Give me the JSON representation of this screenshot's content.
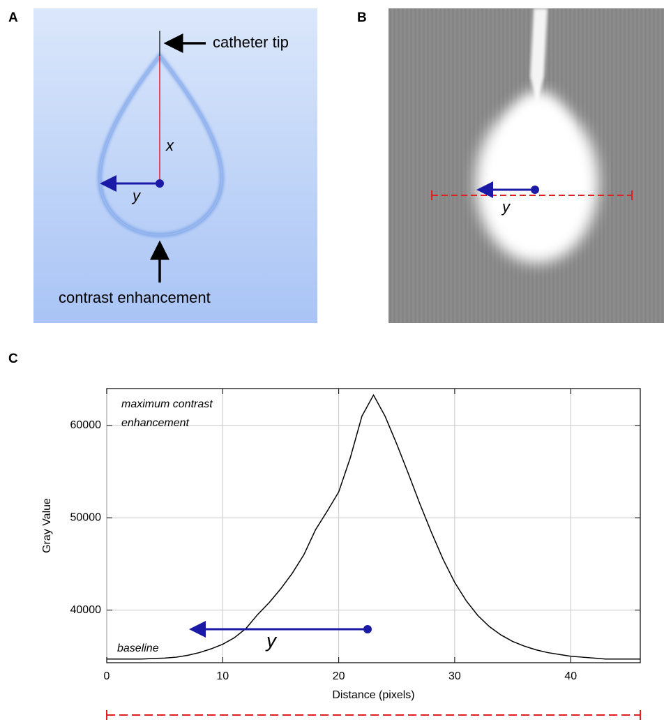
{
  "panels": {
    "a": {
      "label": "A",
      "catheter_tip": "catheter tip",
      "x_label": "x",
      "y_label": "y",
      "contrast": "contrast enhancement"
    },
    "b": {
      "label": "B",
      "y_label": "y"
    },
    "c": {
      "label": "C"
    }
  },
  "chart_data": {
    "type": "line",
    "x_label": "Distance (pixels)",
    "y_label": "Gray Value",
    "annotations": [
      "maximum contrast",
      "enhancement",
      "baseline",
      "y"
    ],
    "x": [
      0,
      1,
      2,
      3,
      4,
      5,
      6,
      7,
      8,
      9,
      10,
      11,
      12,
      13,
      14,
      15,
      16,
      17,
      18,
      19,
      20,
      21,
      22,
      23,
      24,
      25,
      26,
      27,
      28,
      29,
      30,
      31,
      32,
      33,
      34,
      35,
      36,
      37,
      38,
      39,
      40,
      41,
      42,
      43,
      44,
      45,
      46
    ],
    "values": [
      34700,
      34700,
      34700,
      34700,
      34750,
      34800,
      34900,
      35100,
      35400,
      35800,
      36300,
      37000,
      38000,
      39500,
      40800,
      42300,
      44000,
      46000,
      48700,
      50700,
      52800,
      56500,
      61000,
      63300,
      61000,
      58000,
      54800,
      51500,
      48400,
      45500,
      43000,
      41000,
      39400,
      38200,
      37300,
      36600,
      36100,
      35700,
      35400,
      35200,
      35000,
      34900,
      34800,
      34700,
      34700,
      34700,
      34700
    ],
    "color": "#000000",
    "xlim": [
      0,
      46
    ],
    "ylim": [
      34300,
      64000
    ],
    "xticks": [
      0,
      10,
      20,
      30,
      40
    ],
    "yticks": [
      40000,
      50000,
      60000
    ],
    "grid": true
  }
}
